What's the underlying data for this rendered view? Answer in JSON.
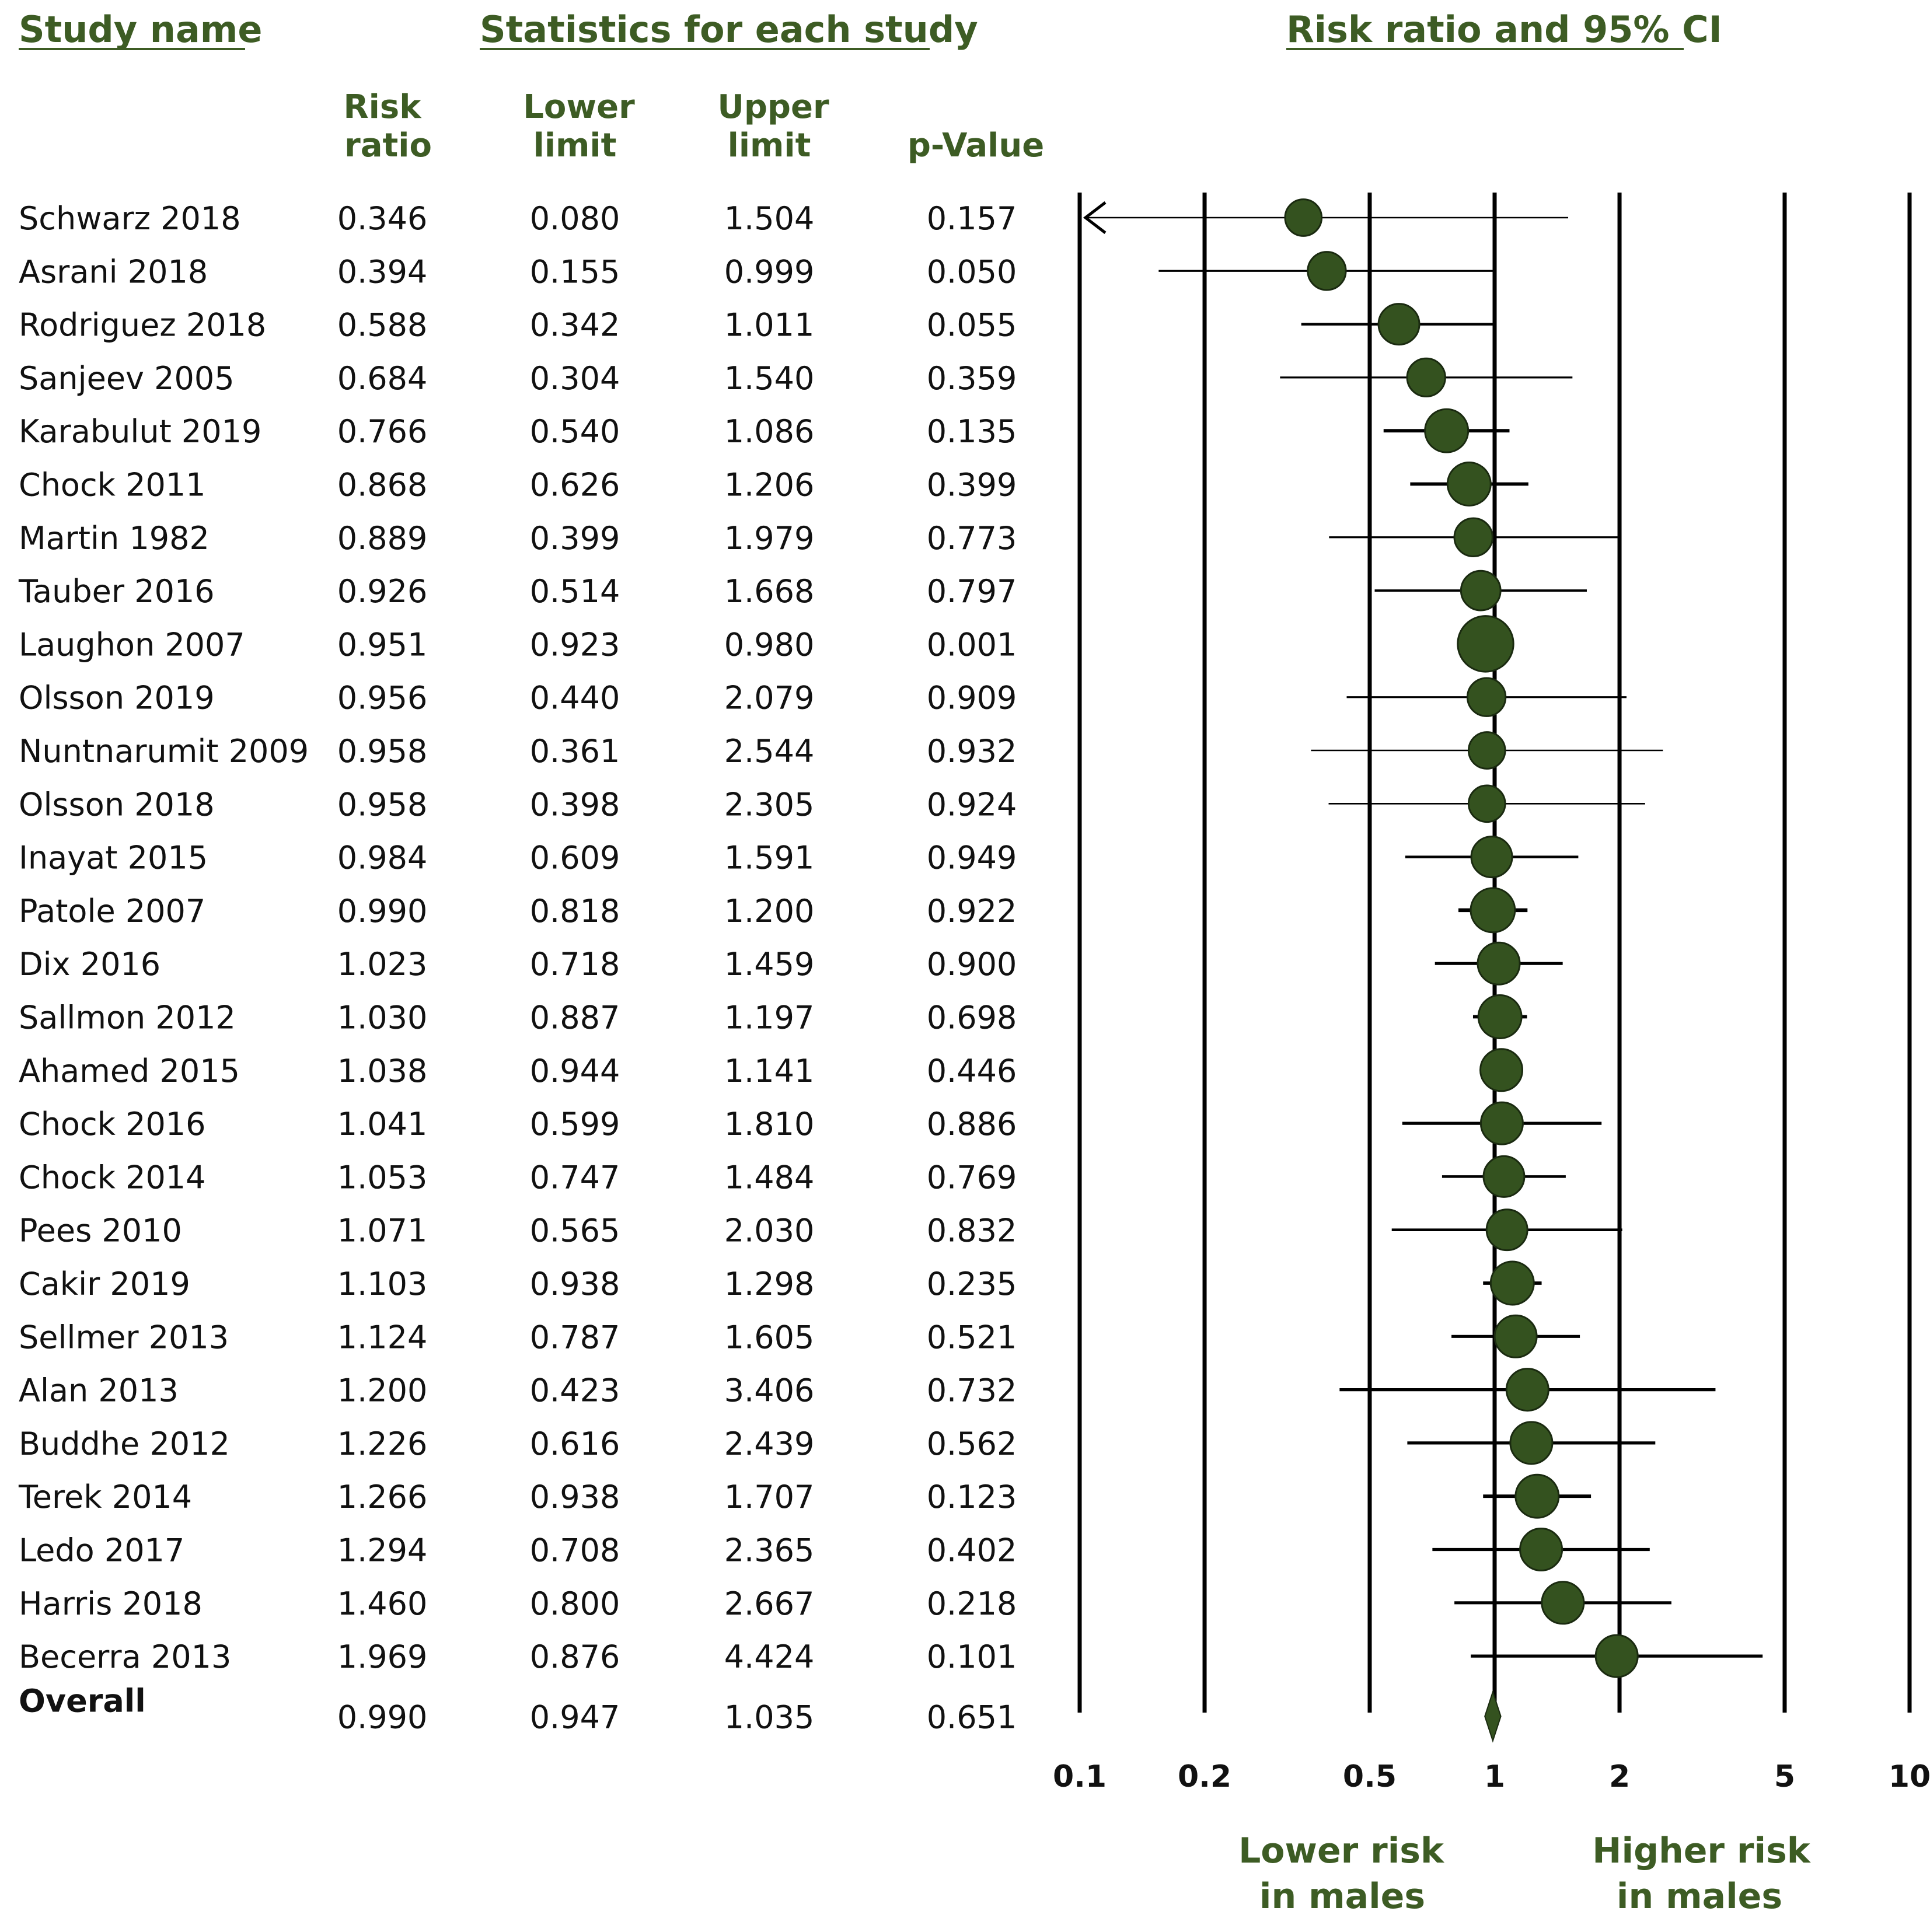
{
  "headers": {
    "study": "Study name",
    "stats": "Statistics for each study",
    "plot": "Risk ratio and 95% CI"
  },
  "columns": {
    "rr": [
      "Risk",
      "ratio"
    ],
    "lower": [
      "Lower",
      "limit"
    ],
    "upper": [
      "Upper",
      "limit"
    ],
    "p": "p-Value"
  },
  "notes": {
    "lower": [
      "Lower risk",
      "in males"
    ],
    "higher": [
      "Higher risk",
      "in males"
    ]
  },
  "colors": {
    "accent": "#3d5c24",
    "marker": "#34521f",
    "line": "#000000"
  },
  "chart_data": {
    "type": "forest",
    "title": "Risk ratio and 95% CI",
    "scale": "log",
    "xlim": [
      0.1,
      10
    ],
    "ticks": [
      0.1,
      0.2,
      0.5,
      1,
      2,
      5,
      10
    ],
    "tick_labels": [
      "0.1",
      "0.2",
      "0.5",
      "1",
      "2",
      "5",
      "10"
    ],
    "gridlines": [
      0.1,
      0.2,
      0.5,
      1,
      2,
      5,
      10
    ],
    "studies": [
      {
        "name": "Schwarz 2018",
        "rr": "0.346",
        "lower": "0.080",
        "upper": "1.504",
        "p": "0.157",
        "weight": 2.0
      },
      {
        "name": "Asrani 2018",
        "rr": "0.394",
        "lower": "0.155",
        "upper": "0.999",
        "p": "0.050",
        "weight": 2.5
      },
      {
        "name": "Rodriguez 2018",
        "rr": "0.588",
        "lower": "0.342",
        "upper": "1.011",
        "p": "0.055",
        "weight": 3.5
      },
      {
        "name": "Sanjeev 2005",
        "rr": "0.684",
        "lower": "0.304",
        "upper": "1.540",
        "p": "0.359",
        "weight": 2.5
      },
      {
        "name": "Karabulut 2019",
        "rr": "0.766",
        "lower": "0.540",
        "upper": "1.086",
        "p": "0.135",
        "weight": 4.5
      },
      {
        "name": "Chock 2011",
        "rr": "0.868",
        "lower": "0.626",
        "upper": "1.206",
        "p": "0.399",
        "weight": 4.5
      },
      {
        "name": "Martin 1982",
        "rr": "0.889",
        "lower": "0.399",
        "upper": "1.979",
        "p": "0.773",
        "weight": 2.5
      },
      {
        "name": "Tauber 2016",
        "rr": "0.926",
        "lower": "0.514",
        "upper": "1.668",
        "p": "0.797",
        "weight": 3.0
      },
      {
        "name": "Laughon 2007",
        "rr": "0.951",
        "lower": "0.923",
        "upper": "0.980",
        "p": "0.001",
        "weight": 12.0
      },
      {
        "name": "Olsson 2019",
        "rr": "0.956",
        "lower": "0.440",
        "upper": "2.079",
        "p": "0.909",
        "weight": 2.5
      },
      {
        "name": "Nuntnarumit 2009",
        "rr": "0.958",
        "lower": "0.361",
        "upper": "2.544",
        "p": "0.932",
        "weight": 2.0
      },
      {
        "name": "Olsson 2018",
        "rr": "0.958",
        "lower": "0.398",
        "upper": "2.305",
        "p": "0.924",
        "weight": 2.0
      },
      {
        "name": "Inayat 2015",
        "rr": "0.984",
        "lower": "0.609",
        "upper": "1.591",
        "p": "0.949",
        "weight": 3.5
      },
      {
        "name": "Patole 2007",
        "rr": "0.990",
        "lower": "0.818",
        "upper": "1.200",
        "p": "0.922",
        "weight": 5.0
      },
      {
        "name": "Dix 2016",
        "rr": "1.023",
        "lower": "0.718",
        "upper": "1.459",
        "p": "0.900",
        "weight": 4.0
      },
      {
        "name": "Sallmon 2012",
        "rr": "1.030",
        "lower": "0.887",
        "upper": "1.197",
        "p": "0.698",
        "weight": 4.5
      },
      {
        "name": "Ahamed 2015",
        "rr": "1.038",
        "lower": "0.944",
        "upper": "1.141",
        "p": "0.446",
        "weight": 4.0
      },
      {
        "name": "Chock 2016",
        "rr": "1.041",
        "lower": "0.599",
        "upper": "1.810",
        "p": "0.886",
        "weight": 4.0
      },
      {
        "name": "Chock 2014",
        "rr": "1.053",
        "lower": "0.747",
        "upper": "1.484",
        "p": "0.769",
        "weight": 3.5
      },
      {
        "name": "Pees 2010",
        "rr": "1.071",
        "lower": "0.565",
        "upper": "2.030",
        "p": "0.832",
        "weight": 3.5
      },
      {
        "name": "Cakir 2019",
        "rr": "1.103",
        "lower": "0.938",
        "upper": "1.298",
        "p": "0.235",
        "weight": 4.5
      },
      {
        "name": "Sellmer 2013",
        "rr": "1.124",
        "lower": "0.787",
        "upper": "1.605",
        "p": "0.521",
        "weight": 4.0
      },
      {
        "name": "Alan 2013",
        "rr": "1.200",
        "lower": "0.423",
        "upper": "3.406",
        "p": "0.732",
        "weight": 4.0
      },
      {
        "name": "Buddhe 2012",
        "rr": "1.226",
        "lower": "0.616",
        "upper": "2.439",
        "p": "0.562",
        "weight": 4.0
      },
      {
        "name": "Terek 2014",
        "rr": "1.266",
        "lower": "0.938",
        "upper": "1.707",
        "p": "0.123",
        "weight": 4.5
      },
      {
        "name": "Ledo 2017",
        "rr": "1.294",
        "lower": "0.708",
        "upper": "2.365",
        "p": "0.402",
        "weight": 4.0
      },
      {
        "name": "Harris 2018",
        "rr": "1.460",
        "lower": "0.800",
        "upper": "2.667",
        "p": "0.218",
        "weight": 4.0
      },
      {
        "name": "Becerra 2013",
        "rr": "1.969",
        "lower": "0.876",
        "upper": "4.424",
        "p": "0.101",
        "weight": 4.0
      }
    ],
    "overall": {
      "name": "Overall",
      "rr": "0.990",
      "lower": "0.947",
      "upper": "1.035",
      "p": "0.651"
    },
    "annotations": [
      "Lower risk in males",
      "Higher risk in males"
    ]
  }
}
